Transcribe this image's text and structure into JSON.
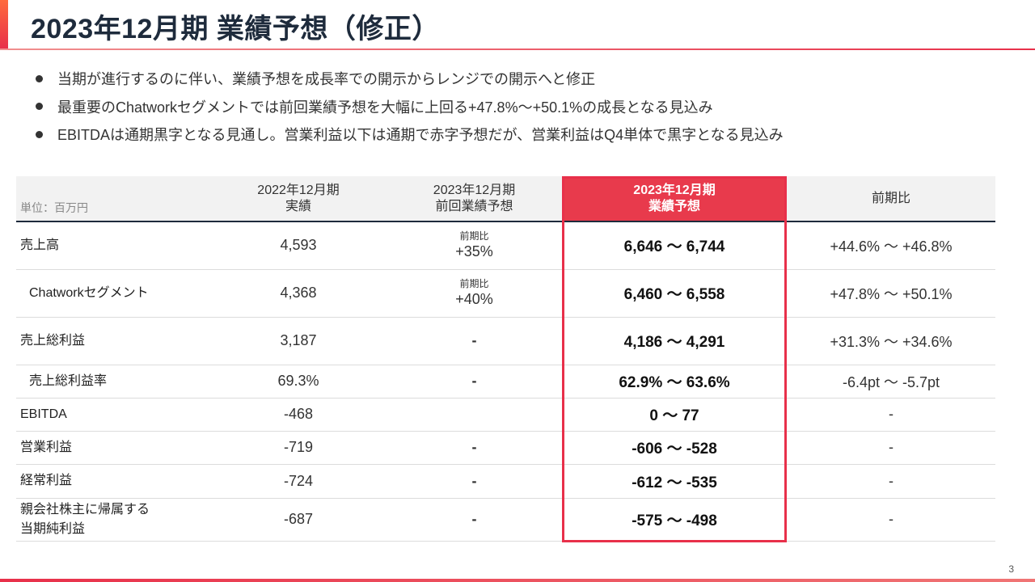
{
  "title": "2023年12月期 業績予想（修正）",
  "bullets": [
    "当期が進行するのに伴い、業績予想を成長率での開示からレンジでの開示へと修正",
    "最重要のChatworkセグメントでは前回業績予想を大幅に上回る+47.8%〜+50.1%の成長となる見込み",
    "EBITDAは通期黒字となる見通し。営業利益以下は通期で赤字予想だが、営業利益はQ4単体で黒字となる見込み"
  ],
  "table": {
    "unit": "単位：百万円",
    "headers": {
      "col1_line1": "2022年12月期",
      "col1_line2": "実績",
      "col2_line1": "2023年12月期",
      "col2_line2": "前回業績予想",
      "col3_line1": "2023年12月期",
      "col3_line2": "業績予想",
      "col4": "前期比"
    },
    "rows": [
      {
        "label": "売上高",
        "actual": "4,593",
        "prev_note": "前期比",
        "prev": "+35%",
        "forecast": "6,646 〜 6,744",
        "yoy": "+44.6% 〜 +46.8%"
      },
      {
        "label": "Chatworkセグメント",
        "actual": "4,368",
        "prev_note": "前期比",
        "prev": "+40%",
        "forecast": "6,460 〜 6,558",
        "yoy": "+47.8% 〜 +50.1%"
      },
      {
        "label": "売上総利益",
        "actual": "3,187",
        "prev": "-",
        "forecast": "4,186 〜 4,291",
        "yoy": "+31.3% 〜 +34.6%"
      },
      {
        "label": "売上総利益率",
        "actual": "69.3%",
        "prev": "-",
        "forecast": "62.9% 〜 63.6%",
        "yoy": "-6.4pt 〜 -5.7pt"
      },
      {
        "label": "EBITDA",
        "actual": "-468",
        "prev": "",
        "forecast": "0 〜 77",
        "yoy": "-"
      },
      {
        "label": "営業利益",
        "actual": "-719",
        "prev": "-",
        "forecast": "-606 〜 -528",
        "yoy": "-"
      },
      {
        "label": "経常利益",
        "actual": "-724",
        "prev": "-",
        "forecast": "-612 〜 -535",
        "yoy": "-"
      },
      {
        "label_line1": "親会社株主に帰属する",
        "label_line2": "当期純利益",
        "actual": "-687",
        "prev": "-",
        "forecast": "-575 〜 -498",
        "yoy": "-"
      }
    ]
  },
  "page_number": "3",
  "colors": {
    "accent": "#e8304a",
    "title": "#1e2b3c",
    "header_bg": "#f2f2f2"
  }
}
